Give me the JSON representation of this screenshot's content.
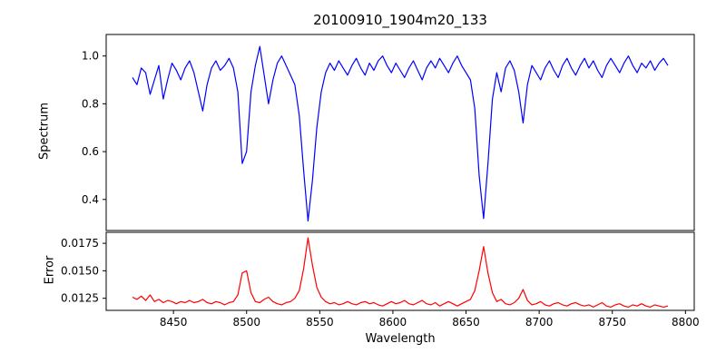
{
  "figure": {
    "background": "#ffffff",
    "axis_color": "#000000"
  },
  "chart_data": {
    "type": "line",
    "title": "20100910_1904m20_133",
    "xlabel": "Wavelength",
    "xlim": [
      8404,
      8806
    ],
    "xticks": [
      8450,
      8500,
      8550,
      8600,
      8650,
      8700,
      8750,
      8800
    ],
    "xtick_labels": [
      "8450",
      "8500",
      "8550",
      "8600",
      "8650",
      "8700",
      "8750",
      "8800"
    ],
    "x": [
      8422,
      8425,
      8428,
      8431,
      8434,
      8437,
      8440,
      8443,
      8446,
      8449,
      8452,
      8455,
      8458,
      8461,
      8464,
      8467,
      8470,
      8473,
      8476,
      8479,
      8482,
      8485,
      8488,
      8491,
      8494,
      8497,
      8500,
      8503,
      8506,
      8509,
      8512,
      8515,
      8518,
      8521,
      8524,
      8527,
      8530,
      8533,
      8536,
      8539,
      8542,
      8545,
      8548,
      8551,
      8554,
      8557,
      8560,
      8563,
      8566,
      8569,
      8572,
      8575,
      8578,
      8581,
      8584,
      8587,
      8590,
      8593,
      8596,
      8599,
      8602,
      8605,
      8608,
      8611,
      8614,
      8617,
      8620,
      8623,
      8626,
      8629,
      8632,
      8635,
      8638,
      8641,
      8644,
      8647,
      8650,
      8653,
      8656,
      8659,
      8662,
      8665,
      8668,
      8671,
      8674,
      8677,
      8680,
      8683,
      8686,
      8689,
      8692,
      8695,
      8698,
      8701,
      8704,
      8707,
      8710,
      8713,
      8716,
      8719,
      8722,
      8725,
      8728,
      8731,
      8734,
      8737,
      8740,
      8743,
      8746,
      8749,
      8752,
      8755,
      8758,
      8761,
      8764,
      8767,
      8770,
      8773,
      8776,
      8779,
      8782,
      8785,
      8788
    ],
    "panels": [
      {
        "ylabel": "Spectrum",
        "ylim": [
          0.27,
          1.09
        ],
        "yticks": [
          0.4,
          0.6,
          0.8,
          1.0
        ],
        "ytick_labels": [
          "0.4",
          "0.6",
          "0.8",
          "1.0"
        ],
        "series": [
          {
            "name": "spectrum",
            "color": "#0000ff",
            "values": [
              0.91,
              0.88,
              0.95,
              0.93,
              0.84,
              0.9,
              0.96,
              0.82,
              0.9,
              0.97,
              0.94,
              0.9,
              0.95,
              0.98,
              0.93,
              0.85,
              0.77,
              0.88,
              0.95,
              0.98,
              0.94,
              0.96,
              0.99,
              0.95,
              0.85,
              0.55,
              0.6,
              0.85,
              0.96,
              1.04,
              0.92,
              0.8,
              0.9,
              0.97,
              1.0,
              0.96,
              0.92,
              0.88,
              0.75,
              0.52,
              0.31,
              0.48,
              0.7,
              0.85,
              0.93,
              0.97,
              0.94,
              0.98,
              0.95,
              0.92,
              0.96,
              0.99,
              0.95,
              0.92,
              0.97,
              0.94,
              0.98,
              1.0,
              0.96,
              0.93,
              0.97,
              0.94,
              0.91,
              0.95,
              0.98,
              0.94,
              0.9,
              0.95,
              0.98,
              0.95,
              0.99,
              0.96,
              0.93,
              0.97,
              1.0,
              0.96,
              0.93,
              0.9,
              0.78,
              0.5,
              0.32,
              0.55,
              0.82,
              0.93,
              0.85,
              0.95,
              0.98,
              0.94,
              0.85,
              0.72,
              0.88,
              0.96,
              0.93,
              0.9,
              0.95,
              0.98,
              0.94,
              0.91,
              0.96,
              0.99,
              0.95,
              0.92,
              0.96,
              0.99,
              0.95,
              0.98,
              0.94,
              0.91,
              0.96,
              0.99,
              0.96,
              0.93,
              0.97,
              1.0,
              0.96,
              0.93,
              0.97,
              0.95,
              0.98,
              0.94,
              0.97,
              0.99,
              0.96
            ]
          }
        ]
      },
      {
        "ylabel": "Error",
        "ylim": [
          0.0114,
          0.0185
        ],
        "yticks": [
          0.0125,
          0.015,
          0.0175
        ],
        "ytick_labels": [
          "0.0125",
          "0.0150",
          "0.0175"
        ],
        "series": [
          {
            "name": "error",
            "color": "#ff0000",
            "values": [
              0.0126,
              0.0124,
              0.0127,
              0.0123,
              0.0128,
              0.0122,
              0.0124,
              0.0121,
              0.0123,
              0.0122,
              0.012,
              0.0122,
              0.0121,
              0.0123,
              0.0121,
              0.0122,
              0.0124,
              0.0121,
              0.012,
              0.0122,
              0.0121,
              0.0119,
              0.0121,
              0.0122,
              0.0128,
              0.0148,
              0.015,
              0.013,
              0.0122,
              0.0121,
              0.0124,
              0.0126,
              0.0122,
              0.012,
              0.0119,
              0.0121,
              0.0122,
              0.0125,
              0.0132,
              0.0152,
              0.018,
              0.0155,
              0.0135,
              0.0126,
              0.0122,
              0.012,
              0.0121,
              0.0119,
              0.012,
              0.0122,
              0.012,
              0.0119,
              0.0121,
              0.0122,
              0.012,
              0.0121,
              0.0119,
              0.0118,
              0.012,
              0.0122,
              0.012,
              0.0121,
              0.0123,
              0.012,
              0.0119,
              0.0121,
              0.0123,
              0.012,
              0.0119,
              0.0121,
              0.0118,
              0.012,
              0.0122,
              0.012,
              0.0118,
              0.012,
              0.0122,
              0.0124,
              0.0132,
              0.015,
              0.0172,
              0.0148,
              0.013,
              0.0122,
              0.0124,
              0.012,
              0.0119,
              0.0121,
              0.0125,
              0.0133,
              0.0123,
              0.0119,
              0.012,
              0.0122,
              0.0119,
              0.0118,
              0.012,
              0.0121,
              0.0119,
              0.0118,
              0.012,
              0.0121,
              0.0119,
              0.0118,
              0.0119,
              0.0117,
              0.0119,
              0.0121,
              0.0118,
              0.0117,
              0.0119,
              0.012,
              0.0118,
              0.0117,
              0.0119,
              0.0118,
              0.012,
              0.0118,
              0.0117,
              0.0119,
              0.0118,
              0.0117,
              0.0118
            ]
          }
        ]
      }
    ]
  }
}
